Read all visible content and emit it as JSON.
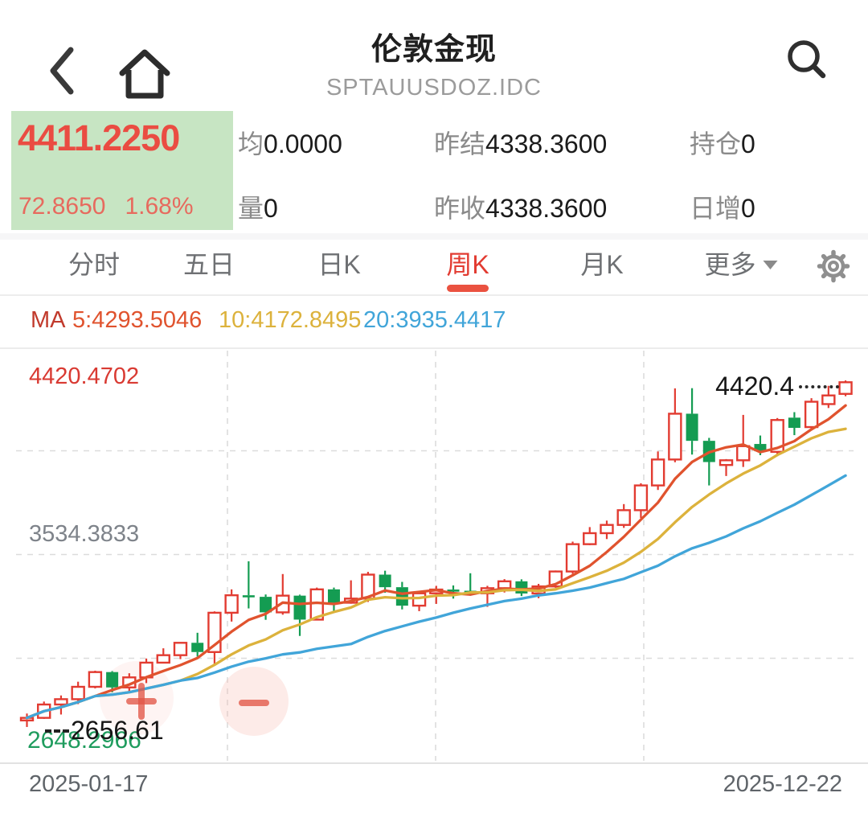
{
  "header": {
    "title": "伦敦金现",
    "subtitle": "SPTAUUSDOZ.IDC"
  },
  "quote": {
    "last_price": "4411.2250",
    "change": "72.8650",
    "change_percent": "1.68%",
    "avg_label": "均",
    "avg_value": "0.0000",
    "volume_label": "量",
    "volume_value": "0",
    "prev_settle_label": "昨结",
    "prev_settle_value": "4338.3600",
    "prev_close_label": "昨收",
    "prev_close_value": "4338.3600",
    "open_interest_label": "持仓",
    "open_interest_value": "0",
    "daily_increase_label": "日增",
    "daily_increase_value": "0"
  },
  "tabs": [
    {
      "label": "分时"
    },
    {
      "label": "五日"
    },
    {
      "label": "日K"
    },
    {
      "label": "周K",
      "active": true
    },
    {
      "label": "月K"
    },
    {
      "label": "更多"
    }
  ],
  "ma_legend": {
    "title": "MA",
    "ma5": "5:4293.5046",
    "ma10": "10:4172.8495",
    "ma20": "20:3935.4417"
  },
  "colors": {
    "up": "#e23b31",
    "down": "#149c52",
    "ma5": "#e0532e",
    "ma10": "#dcb23c",
    "ma20": "#41a5d9",
    "accent": "#ea4c42",
    "accent_soft": "#e76a5e",
    "green_bg": "#c7e5c3"
  },
  "chart_data": {
    "type": "candlestick",
    "title": "伦敦金现 周K (weekly K-line)",
    "x_labels": [
      "2025-01-17",
      "2025-12-22"
    ],
    "y_axis": {
      "max_label": "4420.4702",
      "mid_label": "3534.3833",
      "min_label": "2648.2966"
    },
    "markers": {
      "high_label": "4420.4",
      "low_label": "2656.61"
    },
    "price_axis": {
      "max": 4420.4702,
      "mid": 3534.3833,
      "min": 2648.2966
    },
    "grid": {
      "h_lines": 3,
      "v_lines": 3,
      "style": "dashed"
    },
    "ma": [
      {
        "period": 5,
        "color": "#e0532e"
      },
      {
        "period": 10,
        "color": "#dcb23c"
      },
      {
        "period": 20,
        "color": "#41a5d9"
      }
    ],
    "candles": [
      [
        2690,
        2725,
        2656.61,
        2703
      ],
      [
        2703,
        2786,
        2698,
        2771
      ],
      [
        2771,
        2817,
        2720,
        2798
      ],
      [
        2798,
        2887,
        2773,
        2861
      ],
      [
        2861,
        2943,
        2853,
        2936
      ],
      [
        2936,
        2941,
        2833,
        2858
      ],
      [
        2858,
        2930,
        2832,
        2909
      ],
      [
        2909,
        3005,
        2880,
        2984
      ],
      [
        2984,
        3057,
        2982,
        3022
      ],
      [
        3022,
        3086,
        3002,
        3085
      ],
      [
        3085,
        3136,
        3015,
        3038
      ],
      [
        3038,
        3245,
        2970,
        3238
      ],
      [
        3238,
        3357,
        3193,
        3327
      ],
      [
        3327,
        3500,
        3260,
        3319
      ],
      [
        3319,
        3331,
        3202,
        3240
      ],
      [
        3240,
        3435,
        3228,
        3325
      ],
      [
        3325,
        3330,
        3120,
        3203
      ],
      [
        3203,
        3366,
        3200,
        3357
      ],
      [
        3357,
        3366,
        3245,
        3289
      ],
      [
        3289,
        3403,
        3284,
        3310
      ],
      [
        3310,
        3446,
        3293,
        3432
      ],
      [
        3432,
        3452,
        3340,
        3368
      ],
      [
        3368,
        3395,
        3255,
        3274
      ],
      [
        3274,
        3345,
        3246,
        3337
      ],
      [
        3337,
        3375,
        3283,
        3356
      ],
      [
        3356,
        3377,
        3310,
        3350
      ],
      [
        3350,
        3439,
        3325,
        3337
      ],
      [
        3337,
        3375,
        3268,
        3363
      ],
      [
        3363,
        3409,
        3341,
        3398
      ],
      [
        3398,
        3408,
        3323,
        3336
      ],
      [
        3336,
        3385,
        3312,
        3372
      ],
      [
        3372,
        3453,
        3365,
        3448
      ],
      [
        3448,
        3600,
        3436,
        3587
      ],
      [
        3587,
        3674,
        3582,
        3643
      ],
      [
        3643,
        3707,
        3613,
        3685
      ],
      [
        3685,
        3791,
        3670,
        3760
      ],
      [
        3760,
        3897,
        3720,
        3886
      ],
      [
        3886,
        4059,
        3863,
        4018
      ],
      [
        4018,
        4380,
        4004,
        4251
      ],
      [
        4251,
        4381,
        4043,
        4113
      ],
      [
        4113,
        4128,
        3886,
        4005
      ],
      [
        3990,
        4020,
        3934,
        4014
      ],
      [
        4014,
        4245,
        3980,
        4086
      ],
      [
        4097,
        4140,
        4040,
        4060
      ],
      [
        4057,
        4229,
        4035,
        4219
      ],
      [
        4231,
        4259,
        4142,
        4179
      ],
      [
        4183,
        4330,
        4175,
        4312
      ],
      [
        4300,
        4393,
        4280,
        4344
      ],
      [
        4352,
        4420.4702,
        4340,
        4411.225
      ]
    ]
  }
}
